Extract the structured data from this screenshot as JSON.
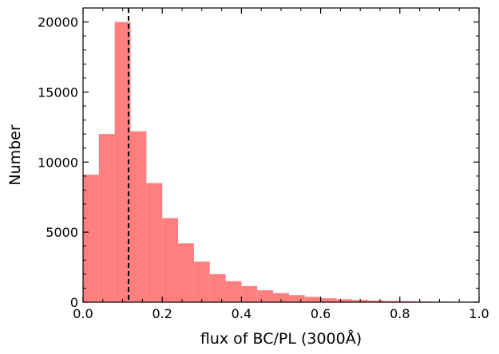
{
  "chart_data": {
    "type": "bar",
    "subtype": "histogram",
    "title": "",
    "xlabel": "flux of BC/PL (3000Å)",
    "ylabel": "Number",
    "xlim": [
      0.0,
      1.0
    ],
    "ylim": [
      0,
      21000
    ],
    "bin_width": 0.04,
    "bins": [
      {
        "x0": 0.0,
        "value": 9100
      },
      {
        "x0": 0.04,
        "value": 12000
      },
      {
        "x0": 0.08,
        "value": 20000
      },
      {
        "x0": 0.12,
        "value": 12200
      },
      {
        "x0": 0.16,
        "value": 8500
      },
      {
        "x0": 0.2,
        "value": 6000
      },
      {
        "x0": 0.24,
        "value": 4200
      },
      {
        "x0": 0.28,
        "value": 2900
      },
      {
        "x0": 0.32,
        "value": 2000
      },
      {
        "x0": 0.36,
        "value": 1500
      },
      {
        "x0": 0.4,
        "value": 1150
      },
      {
        "x0": 0.44,
        "value": 850
      },
      {
        "x0": 0.48,
        "value": 650
      },
      {
        "x0": 0.52,
        "value": 500
      },
      {
        "x0": 0.56,
        "value": 380
      },
      {
        "x0": 0.6,
        "value": 280
      },
      {
        "x0": 0.64,
        "value": 210
      },
      {
        "x0": 0.68,
        "value": 160
      },
      {
        "x0": 0.72,
        "value": 120
      },
      {
        "x0": 0.76,
        "value": 90
      },
      {
        "x0": 0.8,
        "value": 70
      },
      {
        "x0": 0.84,
        "value": 50
      },
      {
        "x0": 0.88,
        "value": 35
      },
      {
        "x0": 0.92,
        "value": 25
      }
    ],
    "vline_x": 0.115,
    "xticks": [
      "0.0",
      "0.2",
      "0.4",
      "0.6",
      "0.8",
      "1.0"
    ],
    "xtick_values": [
      0.0,
      0.2,
      0.4,
      0.6,
      0.8,
      1.0
    ],
    "yticks": [
      "0",
      "5000",
      "10000",
      "15000",
      "20000"
    ],
    "ytick_values": [
      0,
      5000,
      10000,
      15000,
      20000
    ],
    "bar_color": "#ff7f7f",
    "vline_color": "#000000",
    "grid": false
  }
}
